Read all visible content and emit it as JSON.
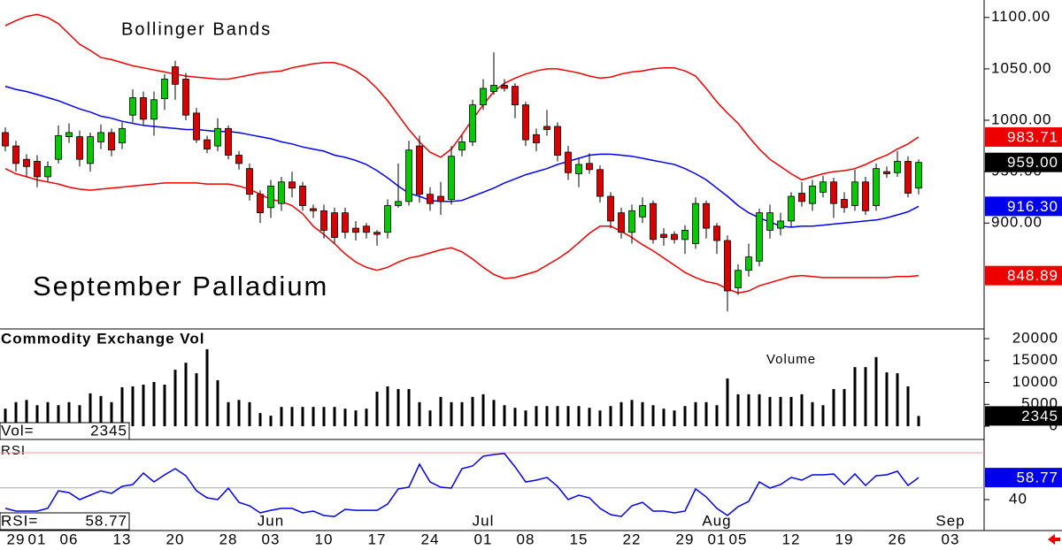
{
  "chart_data": {
    "type": "candlestick",
    "title": "September Palladium",
    "indicator_label": "Bollinger Bands",
    "categories": [
      null,
      "29",
      null,
      "01",
      null,
      null,
      "06",
      null,
      null,
      null,
      null,
      "13",
      null,
      null,
      null,
      null,
      "20",
      null,
      null,
      null,
      null,
      "28",
      null,
      null,
      null,
      "03",
      null,
      null,
      null,
      null,
      "10",
      null,
      null,
      null,
      null,
      "17",
      null,
      null,
      null,
      null,
      "24",
      null,
      null,
      null,
      null,
      "01",
      null,
      null,
      null,
      "08",
      null,
      null,
      null,
      null,
      "15",
      null,
      null,
      null,
      null,
      "22",
      null,
      null,
      null,
      null,
      "29",
      null,
      null,
      "01",
      null,
      "05",
      null,
      null,
      null,
      null,
      "12",
      null,
      null,
      null,
      null,
      "19",
      null,
      null,
      null,
      null,
      "26",
      null,
      null,
      null,
      null,
      "03"
    ],
    "months": [
      null,
      null,
      null,
      null,
      null,
      null,
      null,
      null,
      null,
      null,
      null,
      null,
      null,
      null,
      null,
      null,
      null,
      null,
      null,
      null,
      null,
      null,
      null,
      null,
      null,
      "Jun",
      null,
      null,
      null,
      null,
      null,
      null,
      null,
      null,
      null,
      null,
      null,
      null,
      null,
      null,
      null,
      null,
      null,
      null,
      null,
      "Jul",
      null,
      null,
      null,
      null,
      null,
      null,
      null,
      null,
      null,
      null,
      null,
      null,
      null,
      null,
      null,
      null,
      null,
      null,
      null,
      null,
      null,
      "Aug",
      null,
      null,
      null,
      null,
      null,
      null,
      null,
      null,
      null,
      null,
      null,
      null,
      null,
      null,
      null,
      null,
      null,
      null,
      null,
      null,
      null,
      "Sep"
    ],
    "open": [
      988,
      975,
      962,
      960,
      945,
      962,
      984,
      984,
      958,
      979,
      988,
      978,
      1005,
      1022,
      1001,
      1021,
      1052,
      1040,
      1007,
      981,
      975,
      992,
      966,
      953,
      928,
      915,
      919,
      940,
      936,
      914,
      912,
      910,
      910,
      895,
      897,
      891,
      891,
      917,
      921,
      975,
      928,
      926,
      923,
      971,
      979,
      1015,
      1028,
      1034,
      1033,
      1015,
      986,
      994,
      994,
      969,
      948,
      958,
      952,
      926,
      910,
      891,
      906,
      919,
      889,
      889,
      884,
      880,
      919,
      897,
      883,
      837,
      854,
      863,
      893,
      895,
      902,
      929,
      919,
      930,
      940,
      923,
      917,
      940,
      917,
      950,
      949,
      960,
      934,
      null,
      null,
      null
    ],
    "high": [
      993,
      980,
      967,
      966,
      960,
      995,
      997,
      990,
      988,
      996,
      992,
      998,
      1030,
      1028,
      1028,
      1045,
      1058,
      1046,
      1012,
      985,
      1002,
      995,
      970,
      958,
      932,
      942,
      945,
      950,
      940,
      918,
      918,
      915,
      915,
      902,
      900,
      893,
      923,
      958,
      980,
      985,
      935,
      940,
      975,
      985,
      1020,
      1040,
      1066,
      1040,
      1036,
      1018,
      992,
      1010,
      998,
      975,
      963,
      968,
      956,
      930,
      915,
      918,
      925,
      922,
      895,
      892,
      898,
      925,
      922,
      900,
      888,
      860,
      880,
      914,
      918,
      910,
      930,
      940,
      942,
      946,
      944,
      930,
      952,
      945,
      958,
      955,
      970,
      965,
      962,
      null,
      null,
      null
    ],
    "low": [
      970,
      950,
      945,
      935,
      940,
      958,
      978,
      955,
      950,
      972,
      965,
      972,
      998,
      995,
      985,
      1010,
      1020,
      1000,
      978,
      968,
      970,
      962,
      952,
      922,
      900,
      905,
      912,
      925,
      912,
      905,
      885,
      880,
      885,
      883,
      885,
      878,
      885,
      915,
      917,
      920,
      912,
      908,
      918,
      965,
      975,
      1010,
      1025,
      1028,
      1002,
      975,
      970,
      985,
      960,
      942,
      935,
      948,
      920,
      895,
      885,
      880,
      900,
      880,
      878,
      880,
      870,
      875,
      885,
      870,
      814,
      830,
      848,
      858,
      885,
      888,
      896,
      916,
      912,
      925,
      905,
      910,
      912,
      908,
      912,
      944,
      945,
      925,
      928,
      null,
      null,
      null
    ],
    "close": [
      975,
      958,
      955,
      945,
      955,
      985,
      988,
      962,
      984,
      988,
      971,
      992,
      1022,
      1001,
      1020,
      1040,
      1035,
      1005,
      981,
      972,
      992,
      966,
      958,
      928,
      910,
      936,
      940,
      934,
      917,
      912,
      893,
      886,
      891,
      891,
      891,
      889,
      917,
      921,
      971,
      928,
      919,
      921,
      965,
      979,
      1015,
      1031,
      1034,
      1031,
      1015,
      981,
      978,
      991,
      966,
      949,
      957,
      952,
      926,
      902,
      891,
      912,
      917,
      884,
      886,
      884,
      893,
      919,
      895,
      883,
      834,
      854,
      867,
      910,
      910,
      902,
      926,
      921,
      936,
      940,
      919,
      915,
      940,
      912,
      953,
      948,
      960,
      929,
      959,
      null,
      null,
      null
    ],
    "up_color": "#00cc00",
    "down_color": "#dd0000",
    "bands": [
      {
        "color": "#ee0000",
        "values": [
          1092,
          1097,
          1101,
          1103,
          1100,
          1094,
          1084,
          1074,
          1068,
          1061,
          1059,
          1056,
          1053,
          1051,
          1049,
          1047,
          1045,
          1043,
          1042,
          1041,
          1040,
          1040,
          1042,
          1044,
          1046,
          1047,
          1048,
          1051,
          1053,
          1055,
          1056,
          1056,
          1053,
          1048,
          1041,
          1031,
          1019,
          1005,
          991,
          979,
          969,
          964,
          972,
          986,
          1001,
          1015,
          1028,
          1036,
          1041,
          1045,
          1048,
          1050,
          1050,
          1048,
          1046,
          1043,
          1041,
          1042,
          1045,
          1047,
          1048,
          1050,
          1051,
          1051,
          1048,
          1043,
          1031,
          1018,
          1007,
          997,
          984,
          972,
          962,
          955,
          948,
          942,
          945,
          948,
          950,
          951,
          953,
          957,
          962,
          966,
          972,
          977,
          983.71,
          null,
          null,
          null
        ]
      },
      {
        "color": "#0000ee",
        "values": [
          1033,
          1030,
          1028,
          1025,
          1022,
          1019,
          1015,
          1011,
          1008,
          1004,
          1002,
          999,
          997,
          995,
          994,
          993,
          992,
          991,
          991,
          990,
          989,
          989,
          988,
          986,
          984,
          982,
          979,
          977,
          974,
          972,
          970,
          966,
          964,
          961,
          957,
          951,
          944,
          936,
          929,
          926,
          922,
          921,
          921,
          922,
          926,
          930,
          934,
          939,
          943,
          947,
          950,
          953,
          957,
          960,
          963,
          966,
          967,
          967,
          966,
          965,
          963,
          961,
          959,
          957,
          953,
          948,
          942,
          934,
          926,
          917,
          910,
          905,
          901,
          897,
          896,
          897,
          897,
          898,
          899,
          900,
          901,
          902,
          903,
          905,
          908,
          911,
          916.3,
          null,
          null,
          null
        ]
      },
      {
        "color": "#ee0000",
        "values": [
          953,
          948,
          945,
          942,
          940,
          938,
          935,
          933,
          932,
          933,
          934,
          935,
          936,
          937,
          938,
          939,
          939,
          939,
          939,
          938,
          938,
          938,
          936,
          933,
          928,
          923,
          921,
          917,
          909,
          897,
          889,
          880,
          870,
          862,
          857,
          854,
          857,
          862,
          866,
          868,
          871,
          874,
          876,
          872,
          865,
          857,
          850,
          846,
          847,
          850,
          853,
          859,
          865,
          872,
          881,
          890,
          897,
          897,
          892,
          886,
          879,
          873,
          866,
          859,
          852,
          847,
          843,
          841,
          836,
          832,
          834,
          839,
          842,
          845,
          848,
          849,
          848,
          847,
          847,
          847,
          847,
          847,
          847,
          847,
          848,
          848,
          848.89,
          null,
          null,
          null
        ]
      }
    ],
    "ylim": [
      797,
      1117
    ],
    "yticks": [
      {
        "value": 900,
        "label": "900.00"
      },
      {
        "value": 950,
        "label": "950.00"
      },
      {
        "value": 1000,
        "label": "1000.00"
      },
      {
        "value": 1050,
        "label": "1050.00"
      },
      {
        "value": 1100,
        "label": "1100.00"
      }
    ],
    "price_markers": [
      {
        "value": 983.71,
        "label": "983.71",
        "color": "#ee0000"
      },
      {
        "value": 959,
        "label": "959.00",
        "color": "#000000"
      },
      {
        "value": 916.3,
        "label": "916.30",
        "color": "#0000ee"
      },
      {
        "value": 848.89,
        "label": "848.89",
        "color": "#ee0000"
      }
    ],
    "volume_panel": {
      "title": "Commodity Exchange Vol",
      "label": "Volume",
      "readout": "Vol=",
      "color": "#000000",
      "values": [
        4000,
        5500,
        6000,
        4800,
        5500,
        4800,
        5500,
        4800,
        7500,
        6900,
        5500,
        8900,
        9100,
        9500,
        10100,
        9500,
        12900,
        14500,
        12100,
        17600,
        10500,
        5500,
        6000,
        5500,
        3000,
        2400,
        4400,
        4400,
        4400,
        4400,
        4400,
        4400,
        4000,
        3600,
        4000,
        7900,
        9100,
        8500,
        8500,
        5500,
        3600,
        6700,
        5500,
        5500,
        6700,
        7300,
        6000,
        4800,
        4200,
        3600,
        4600,
        4600,
        4600,
        4600,
        4600,
        4200,
        3600,
        4600,
        5500,
        6000,
        5500,
        4800,
        4000,
        3600,
        4600,
        5500,
        5500,
        4800,
        10900,
        7300,
        7300,
        7300,
        6700,
        6700,
        6700,
        7300,
        5500,
        4800,
        8500,
        8500,
        13500,
        13500,
        15800,
        12300,
        12100,
        9100,
        2345,
        null,
        null,
        null
      ],
      "ylim": [
        -3030,
        22222
      ],
      "yticks": [
        0,
        5000,
        10000,
        15000,
        20000
      ],
      "marker": {
        "value": 2345,
        "label": "2345",
        "color": "#000000"
      }
    },
    "rsi_panel": {
      "title": "RSI",
      "readout": "RSI=",
      "color": "#0000ee",
      "values": [
        32.5,
        30.2,
        30.2,
        30.2,
        32.5,
        47.5,
        46,
        40,
        43.8,
        47.5,
        45.3,
        51.3,
        52.8,
        62.6,
        55.1,
        61.1,
        66.4,
        60.4,
        47.5,
        41.5,
        40,
        49.8,
        37.7,
        34.7,
        28.7,
        30.9,
        32.5,
        32.5,
        28.7,
        30.2,
        26.4,
        25.6,
        31.7,
        30.9,
        30.9,
        30.9,
        36.2,
        49.1,
        50.6,
        70.2,
        55.1,
        50.6,
        49.8,
        66.4,
        68.7,
        77,
        78.5,
        79.3,
        67.9,
        55.1,
        56.6,
        58.9,
        51.3,
        40,
        43.8,
        41.5,
        32.5,
        27.2,
        25.6,
        34.7,
        37.7,
        30.2,
        30.2,
        28.7,
        30.2,
        49.1,
        42.3,
        32.5,
        26.4,
        34,
        38.5,
        55.1,
        49.8,
        52.8,
        58.9,
        56.6,
        61.1,
        61.1,
        61.9,
        52.8,
        61.9,
        52.1,
        60.4,
        61.1,
        64.2,
        52.1,
        58.77,
        null,
        null,
        null
      ],
      "ylim": [
        13.6,
        91.3
      ],
      "yticks": [
        40
      ],
      "levels": [
        {
          "value": 80,
          "color": "#ff9999"
        },
        {
          "value": 50,
          "color": "#aaaaaa"
        }
      ],
      "marker": {
        "value": 58.77,
        "label": "58.77",
        "color": "#0000ee"
      }
    }
  }
}
